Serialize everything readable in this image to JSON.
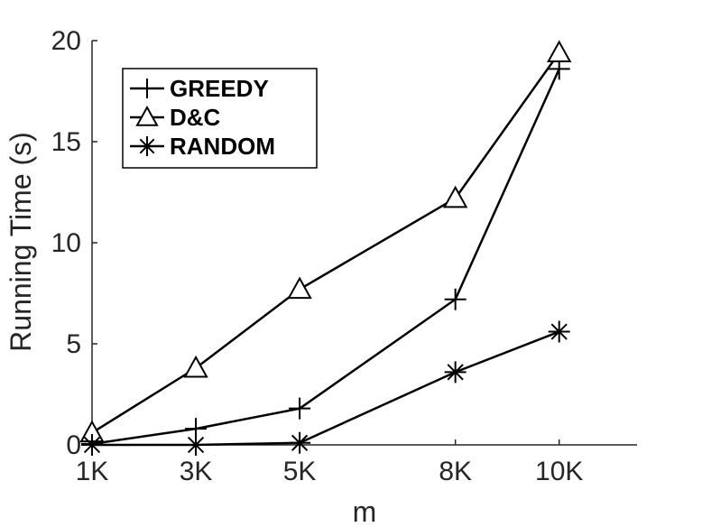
{
  "chart_data": {
    "type": "line",
    "x": [
      1,
      3,
      5,
      8,
      10
    ],
    "x_tick_labels": [
      "1K",
      "3K",
      "5K",
      "8K",
      "10K"
    ],
    "xlim": [
      1,
      11.5
    ],
    "ylim": [
      0,
      20
    ],
    "y_ticks": [
      0,
      5,
      10,
      15,
      20
    ],
    "y_tick_labels": [
      "0",
      "5",
      "10",
      "15",
      "20"
    ],
    "xlabel": "m",
    "ylabel": "Running Time (s)",
    "grid": false,
    "legend_position": "top-left",
    "series": [
      {
        "name": "GREEDY",
        "marker": "plus",
        "color": "#000000",
        "values": [
          0.05,
          0.8,
          1.8,
          7.2,
          18.6
        ]
      },
      {
        "name": "D&C",
        "marker": "triangle",
        "color": "#000000",
        "values": [
          0.6,
          3.8,
          7.7,
          12.2,
          19.4
        ]
      },
      {
        "name": "RANDOM",
        "marker": "star",
        "color": "#000000",
        "values": [
          0.0,
          0.0,
          0.1,
          3.6,
          5.6
        ]
      }
    ]
  }
}
